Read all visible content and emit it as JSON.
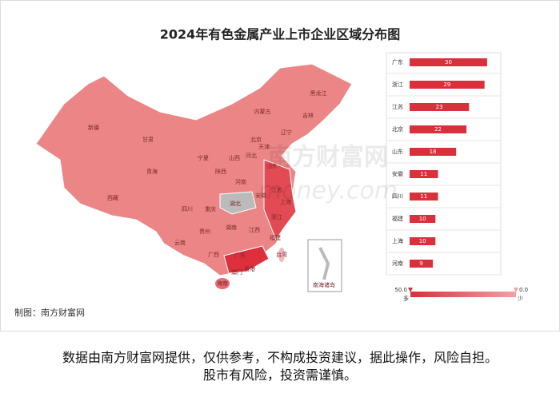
{
  "chart_data": [
    {
      "type": "map",
      "title": "2024年有色金属产业上市企业区域分布图",
      "regions": [
        "黑龙江",
        "吉林",
        "辽宁",
        "内蒙古",
        "北京",
        "天津",
        "河北",
        "山西",
        "山东",
        "新疆",
        "甘肃",
        "宁夏",
        "青海",
        "陕西",
        "河南",
        "江苏",
        "安徽",
        "上海",
        "湖北",
        "西藏",
        "四川",
        "重庆",
        "浙江",
        "贵州",
        "湖南",
        "江西",
        "云南",
        "广西",
        "福建",
        "广东",
        "台湾",
        "香港",
        "澳门",
        "海南",
        "南海诸岛"
      ],
      "color_scale": {
        "range": [
          {
            "value": 50,
            "label": "50.0"
          },
          {
            "value": 0,
            "label": "0.0"
          }
        ],
        "labels": [
          "多",
          "少"
        ],
        "colors": [
          "#d9303c",
          "#f4a0a6"
        ]
      }
    },
    {
      "type": "bar",
      "categories": [
        "广东",
        "浙江",
        "江苏",
        "北京",
        "山东",
        "安徽",
        "四川",
        "福建",
        "上海",
        "河南"
      ],
      "values": [
        30,
        29,
        23,
        22,
        18,
        11,
        11,
        10,
        10,
        9
      ],
      "color": "#d9303c"
    }
  ],
  "credit": "制图：南方财富网",
  "watermark": [
    "南方财富网",
    "money.com"
  ],
  "disclaimer": [
    "数据由南方财富网提供，仅供参考，不构成投资建议，据此操作，风险自担。",
    "股市有风险，投资需谨慎。"
  ]
}
